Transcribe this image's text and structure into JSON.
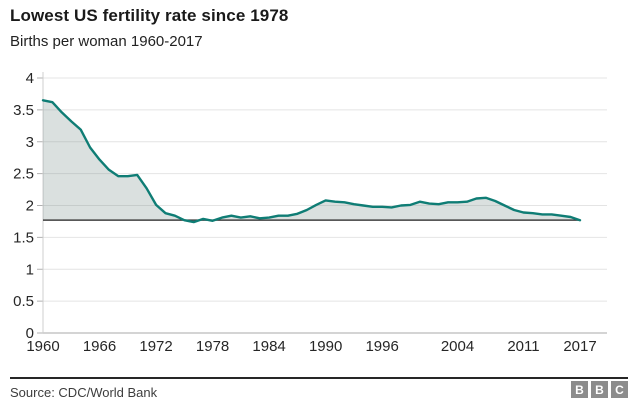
{
  "header": {
    "title": "Lowest US fertility rate since 1978",
    "subtitle": "Births per woman 1960-2017"
  },
  "footer": {
    "source": "Source: CDC/World Bank",
    "bbc_letters": [
      "B",
      "B",
      "C"
    ]
  },
  "chart_data": {
    "type": "area",
    "title": "Lowest US fertility rate since 1978",
    "subtitle": "Births per woman 1960-2017",
    "xlabel": "",
    "ylabel": "",
    "x": [
      1960,
      1961,
      1962,
      1963,
      1964,
      1965,
      1966,
      1967,
      1968,
      1969,
      1970,
      1971,
      1972,
      1973,
      1974,
      1975,
      1976,
      1977,
      1978,
      1979,
      1980,
      1981,
      1982,
      1983,
      1984,
      1985,
      1986,
      1987,
      1988,
      1989,
      1990,
      1991,
      1992,
      1993,
      1994,
      1995,
      1996,
      1997,
      1998,
      1999,
      2000,
      2001,
      2002,
      2003,
      2004,
      2005,
      2006,
      2007,
      2008,
      2009,
      2010,
      2011,
      2012,
      2013,
      2014,
      2015,
      2016,
      2017
    ],
    "values": [
      3.65,
      3.62,
      3.46,
      3.32,
      3.19,
      2.91,
      2.72,
      2.56,
      2.46,
      2.46,
      2.48,
      2.27,
      2.01,
      1.88,
      1.84,
      1.77,
      1.74,
      1.79,
      1.76,
      1.81,
      1.84,
      1.81,
      1.83,
      1.8,
      1.81,
      1.84,
      1.84,
      1.87,
      1.93,
      2.01,
      2.08,
      2.06,
      2.05,
      2.02,
      2.0,
      1.98,
      1.98,
      1.97,
      2.0,
      2.01,
      2.06,
      2.03,
      2.02,
      2.05,
      2.05,
      2.06,
      2.11,
      2.12,
      2.07,
      2.0,
      1.93,
      1.89,
      1.88,
      1.86,
      1.86,
      1.84,
      1.82,
      1.77
    ],
    "ylim": [
      0,
      4
    ],
    "yticks": [
      0,
      0.5,
      1,
      1.5,
      2,
      2.5,
      3,
      3.5,
      4
    ],
    "ytick_labels": [
      "0",
      "0.5",
      "1",
      "1.5",
      "2",
      "2.5",
      "3",
      "3.5",
      "4"
    ],
    "xticks": [
      1960,
      1966,
      1972,
      1978,
      1984,
      1990,
      1996,
      2004,
      2011,
      2017
    ],
    "reference_value": 1.77,
    "grid": true,
    "legend": "none",
    "colors": {
      "line": "#0f7d75",
      "fill": "rgba(120,140,135,0.27)",
      "reference_line": "#404040",
      "gridline": "#e4e4e4",
      "bottom_axis": "#a8a8a8",
      "left_axis": "#cfcfcf",
      "tick": "#b0b0b0",
      "tick_text": "#262626"
    }
  }
}
